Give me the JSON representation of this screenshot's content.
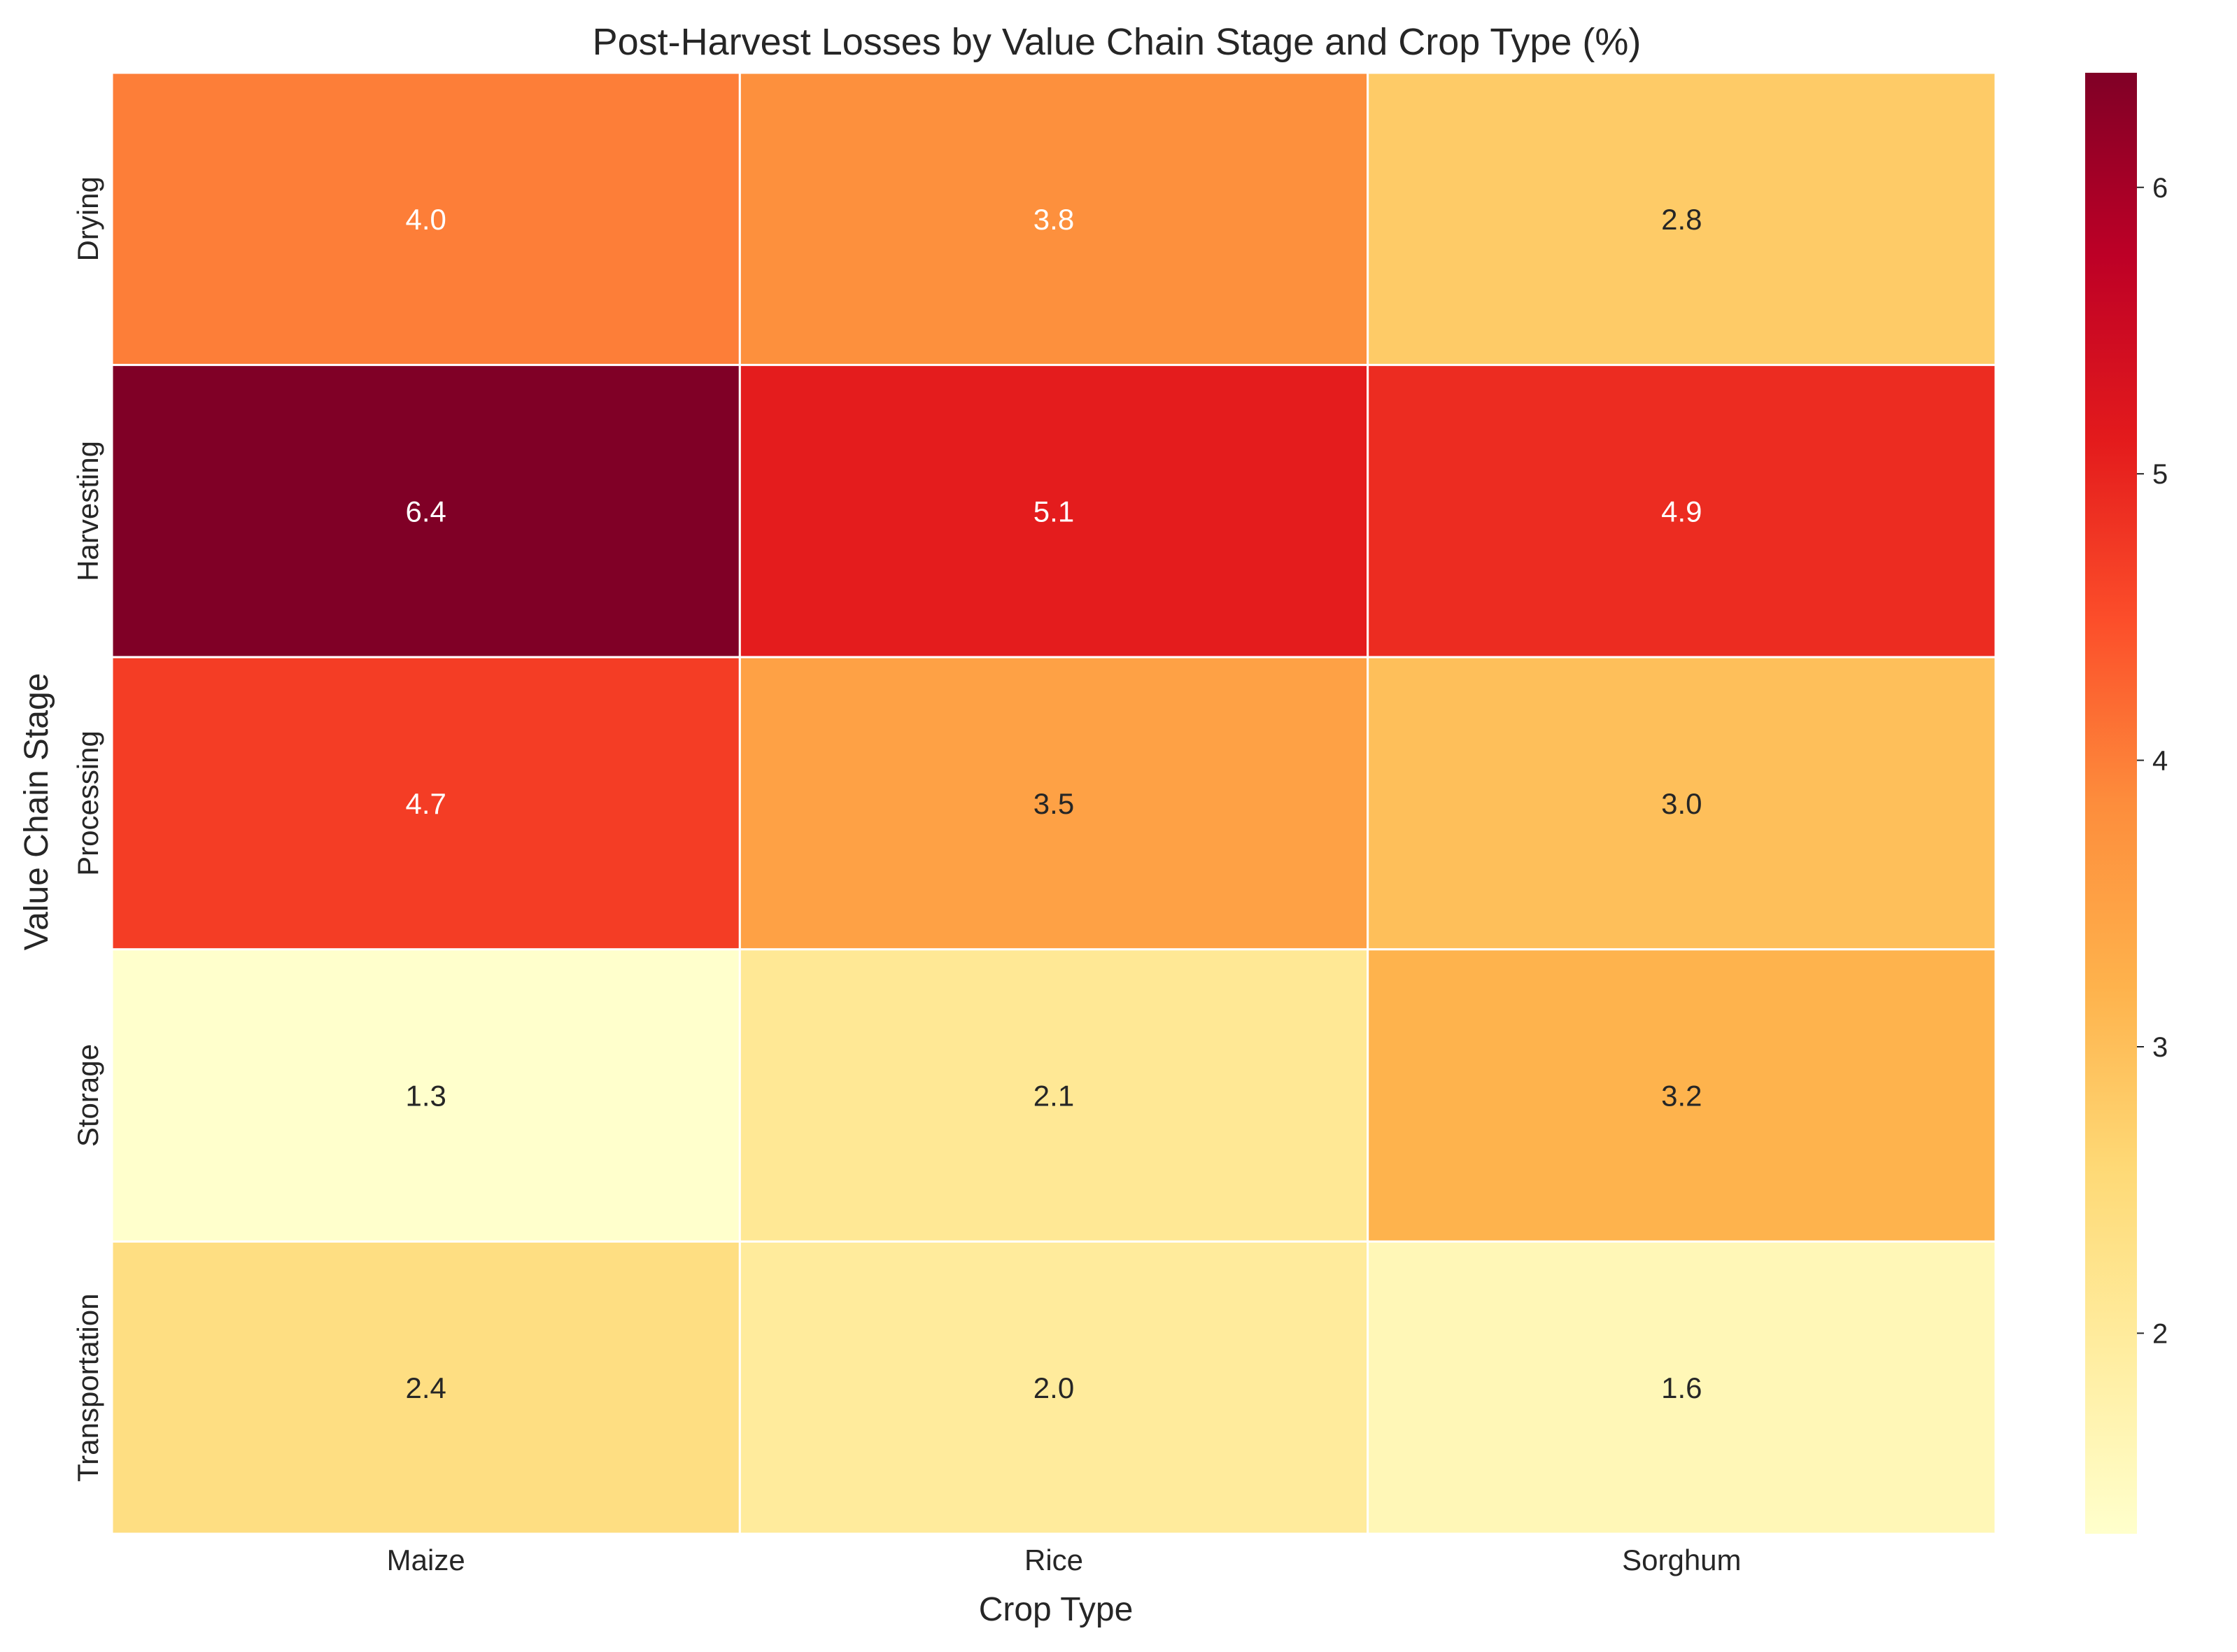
{
  "chart_data": {
    "type": "heatmap",
    "title": "Post-Harvest Losses by Value Chain Stage and Crop Type (%)",
    "xlabel": "Crop Type",
    "ylabel": "Value Chain Stage",
    "columns": [
      "Maize",
      "Rice",
      "Sorghum"
    ],
    "rows": [
      "Drying",
      "Harvesting",
      "Processing",
      "Storage",
      "Transportation"
    ],
    "values": [
      [
        4.0,
        3.8,
        2.8
      ],
      [
        6.4,
        5.1,
        4.9
      ],
      [
        4.7,
        3.5,
        3.0
      ],
      [
        1.3,
        2.1,
        3.2
      ],
      [
        2.4,
        2.0,
        1.6
      ]
    ],
    "value_labels": [
      [
        "4.0",
        "3.8",
        "2.8"
      ],
      [
        "6.4",
        "5.1",
        "4.9"
      ],
      [
        "4.7",
        "3.5",
        "3.0"
      ],
      [
        "1.3",
        "2.1",
        "3.2"
      ],
      [
        "2.4",
        "2.0",
        "1.6"
      ]
    ],
    "colormap": "YlOrRd",
    "vmin": 1.3,
    "vmax": 6.4,
    "colorbar_ticks": [
      2,
      3,
      4,
      5,
      6
    ],
    "colorbar_tick_labels": [
      "2",
      "3",
      "4",
      "5",
      "6"
    ]
  }
}
